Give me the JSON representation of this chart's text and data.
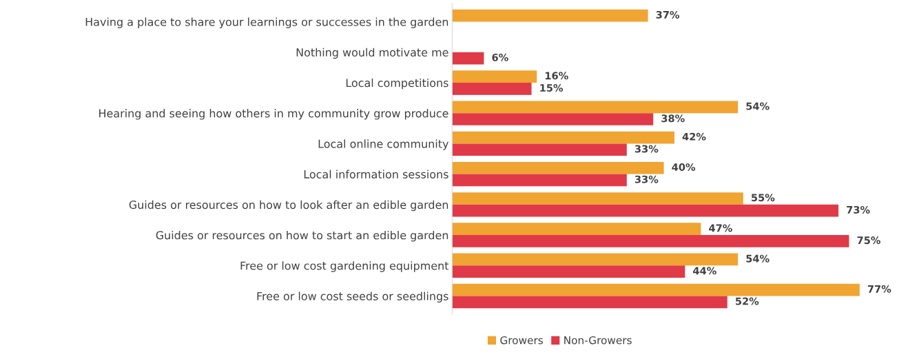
{
  "chart_data": {
    "type": "bar",
    "orientation": "horizontal",
    "legend": "bottom",
    "grid": false,
    "tick_labels": "y",
    "categories": [
      "Having a place to share your learnings or successes in the garden",
      "Nothing would motivate me",
      "Local competitions",
      "Hearing and seeing how others in my community grow produce",
      "Local online community",
      "Local information sessions",
      "Guides or resources on how to look after an edible garden",
      "Guides or resources on how to start an edible garden",
      "Free or low cost gardening equipment",
      "Free or low cost seeds or seedlings"
    ],
    "series": [
      {
        "name": "Growers",
        "color": "#f0a431",
        "values": [
          37,
          null,
          16,
          54,
          42,
          40,
          55,
          47,
          54,
          77
        ],
        "value_labels": [
          "37%",
          null,
          "16%",
          "54%",
          "42%",
          "40%",
          "55%",
          "47%",
          "54%",
          "77%"
        ]
      },
      {
        "name": "Non-Growers",
        "color": "#e03a48",
        "values": [
          null,
          6,
          15,
          38,
          33,
          33,
          73,
          75,
          44,
          52
        ],
        "value_labels": [
          null,
          "6%",
          "15%",
          "38%",
          "33%",
          "33%",
          "73%",
          "75%",
          "44%",
          "52%"
        ]
      }
    ]
  }
}
